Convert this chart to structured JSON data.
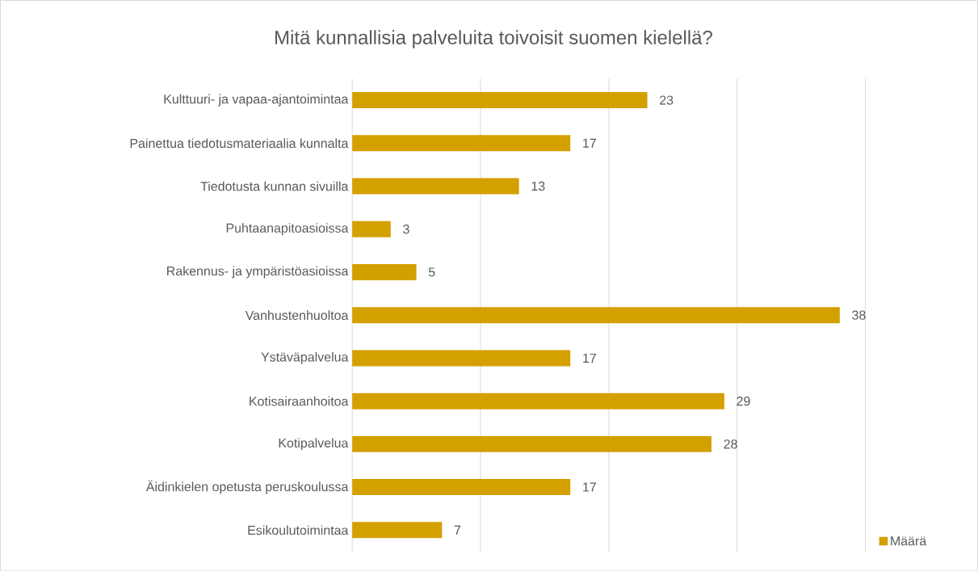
{
  "chart_data": {
    "type": "bar",
    "orientation": "horizontal",
    "title": "Mitä kunnallisia palveluita toivoisit suomen kielellä?",
    "categories": [
      "Kulttuuri- ja vapaa-ajantoimintaa",
      "Painettua tiedotusmateriaalia kunnalta",
      "Tiedotusta kunnan sivuilla",
      "Puhtaanapitoasioissa",
      "Rakennus- ja ympäristöasioissa",
      "Vanhustenhuoltoa",
      "Ystäväpalvelua",
      "Kotisairaanhoitoa",
      "Kotipalvelua",
      "Äidinkielen opetusta peruskoulussa",
      "Esikoulutoimintaa"
    ],
    "series": [
      {
        "name": "Määrä",
        "color": "#d4a000",
        "values": [
          23,
          17,
          13,
          3,
          5,
          38,
          17,
          29,
          28,
          17,
          7
        ]
      }
    ],
    "data_labels": true,
    "xlim": [
      0,
      40
    ],
    "xticks": [
      {
        "value": 0,
        "label": null
      },
      {
        "value": 10,
        "label": null
      },
      {
        "value": 20,
        "label": null
      },
      {
        "value": 30,
        "label": null
      },
      {
        "value": 40,
        "label": null
      }
    ],
    "grid": "x",
    "tick_labels": "y",
    "legend": "bottom right"
  }
}
